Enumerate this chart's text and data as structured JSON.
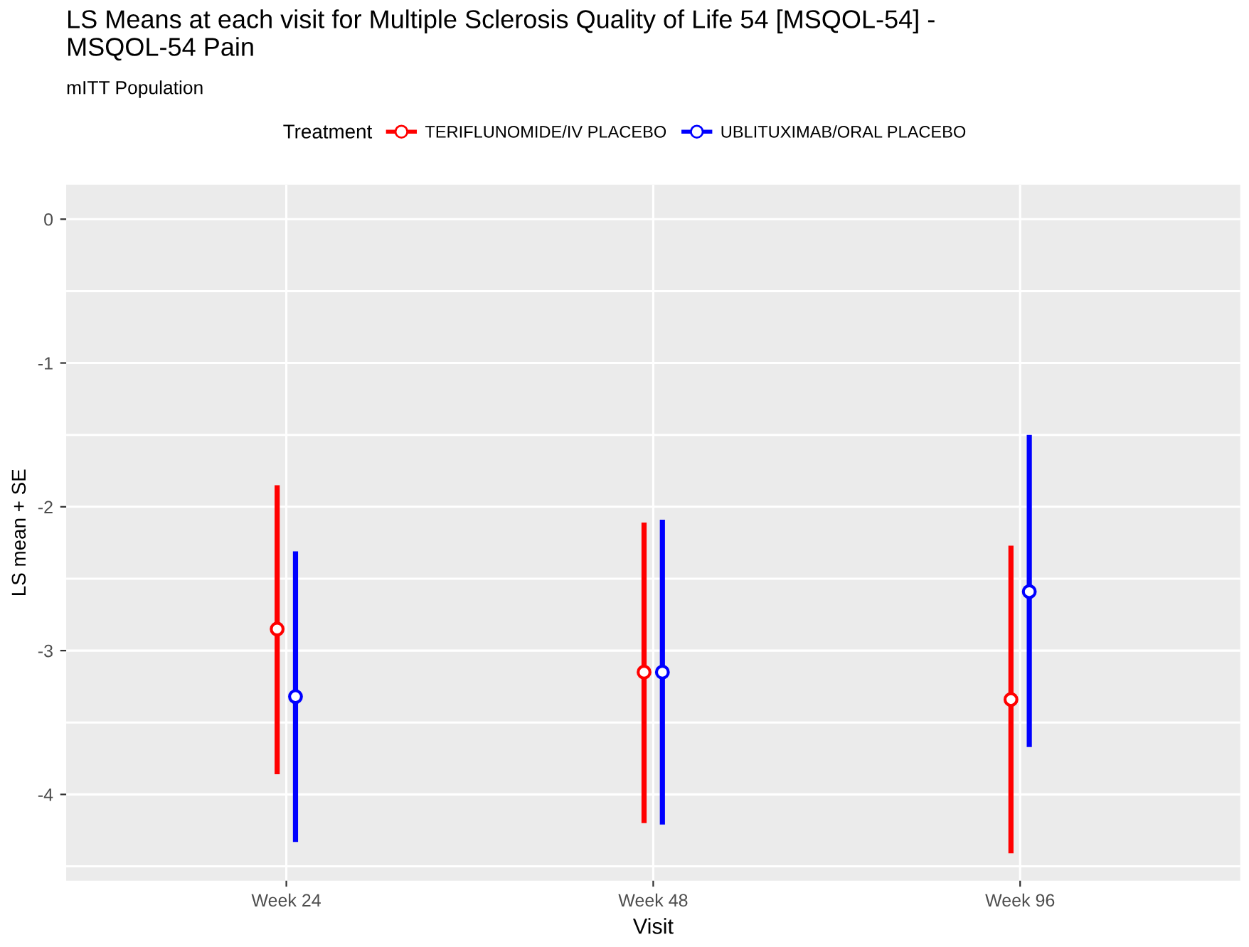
{
  "chart_data": {
    "type": "scatter",
    "title": "LS Means at each visit for Multiple Sclerosis Quality of Life 54 [MSQOL-54] -\nMSQOL-54 Pain",
    "subtitle": "mITT Population",
    "xlabel": "Visit",
    "ylabel": "LS mean + SE",
    "legend_title": "Treatment",
    "categories": [
      "Week 24",
      "Week 48",
      "Week 96"
    ],
    "series": [
      {
        "name": "TERIFLUNOMIDE/IV PLACEBO",
        "color": "#ff0000",
        "values": [
          -2.85,
          -3.15,
          -3.34
        ],
        "errors": [
          [
            -3.86,
            -1.85
          ],
          [
            -4.2,
            -2.11
          ],
          [
            -4.41,
            -2.27
          ]
        ]
      },
      {
        "name": "UBLITUXIMAB/ORAL PLACEBO",
        "color": "#0000ff",
        "values": [
          -3.32,
          -3.15,
          -2.59
        ],
        "errors": [
          [
            -4.33,
            -2.31
          ],
          [
            -4.21,
            -2.09
          ],
          [
            -3.67,
            -1.5
          ]
        ]
      }
    ],
    "ylim": [
      -4.6,
      0.24
    ],
    "yticks": [
      0,
      -1,
      -2,
      -3,
      -4
    ],
    "grid": true,
    "legend": "top",
    "marker": "circle"
  }
}
